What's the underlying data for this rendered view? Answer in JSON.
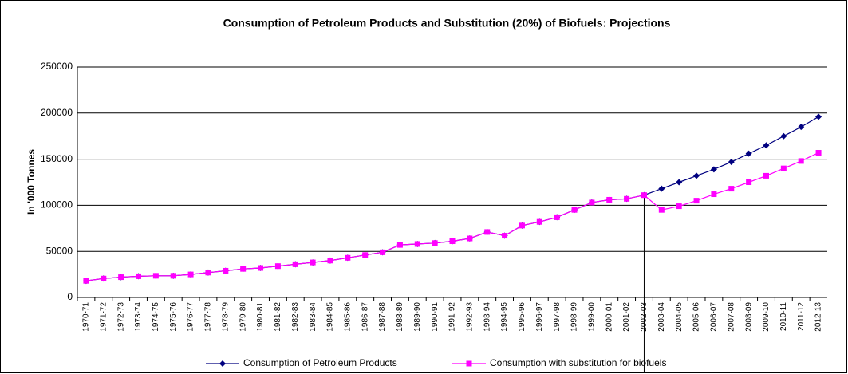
{
  "chart_data": {
    "type": "line",
    "title": "Consumption of Petroleum Products and Substitution (20%) of Biofuels: Projections",
    "y_label": "In '000 Tonnes",
    "categories": [
      "1970-71",
      "1971-72",
      "1972-73",
      "1973-74",
      "1974-75",
      "1975-76",
      "1976-77",
      "1977-78",
      "1978-79",
      "1979-80",
      "1980-81",
      "1981-82",
      "1982-83",
      "1983-84",
      "1984-85",
      "1985-86",
      "1986-87",
      "1987-88",
      "1988-89",
      "1989-90",
      "1990-91",
      "1991-92",
      "1992-93",
      "1993-94",
      "1994-95",
      "1995-96",
      "1996-97",
      "1997-98",
      "1998-99",
      "1999-00",
      "2000-01",
      "2001-02",
      "2002-03",
      "2003-04",
      "2004-05",
      "2005-06",
      "2006-07",
      "2007-08",
      "2008-09",
      "2009-10",
      "2010-11",
      "2011-12",
      "2012-13"
    ],
    "series": [
      {
        "name": "Consumption of Petroleum Products",
        "color": "#000080",
        "marker": "diamond",
        "values": [
          18000,
          20500,
          22000,
          23000,
          23500,
          23500,
          25000,
          27000,
          29000,
          31000,
          32000,
          34000,
          36000,
          38000,
          40000,
          43000,
          46000,
          49000,
          57000,
          58000,
          59000,
          61000,
          64000,
          71000,
          67000,
          78000,
          82000,
          87000,
          95000,
          103000,
          106000,
          107000,
          111000,
          118000,
          125000,
          132000,
          139000,
          147000,
          156000,
          165000,
          175000,
          185000,
          196000
        ]
      },
      {
        "name": "Consumption with substitution for biofuels",
        "color": "#ff00ff",
        "marker": "square",
        "values": [
          18000,
          20500,
          22000,
          23000,
          23500,
          23500,
          25000,
          27000,
          29000,
          31000,
          32000,
          34000,
          36000,
          38000,
          40000,
          43000,
          46000,
          49000,
          57000,
          58000,
          59000,
          61000,
          64000,
          71000,
          67000,
          78000,
          82000,
          87000,
          95000,
          103000,
          106000,
          107000,
          111000,
          95000,
          99000,
          105000,
          112000,
          118000,
          125000,
          132000,
          140000,
          148000,
          157000
        ]
      }
    ],
    "ylim": [
      0,
      250000
    ],
    "yticks": [
      0,
      50000,
      100000,
      150000,
      200000,
      250000
    ],
    "grid": true
  }
}
